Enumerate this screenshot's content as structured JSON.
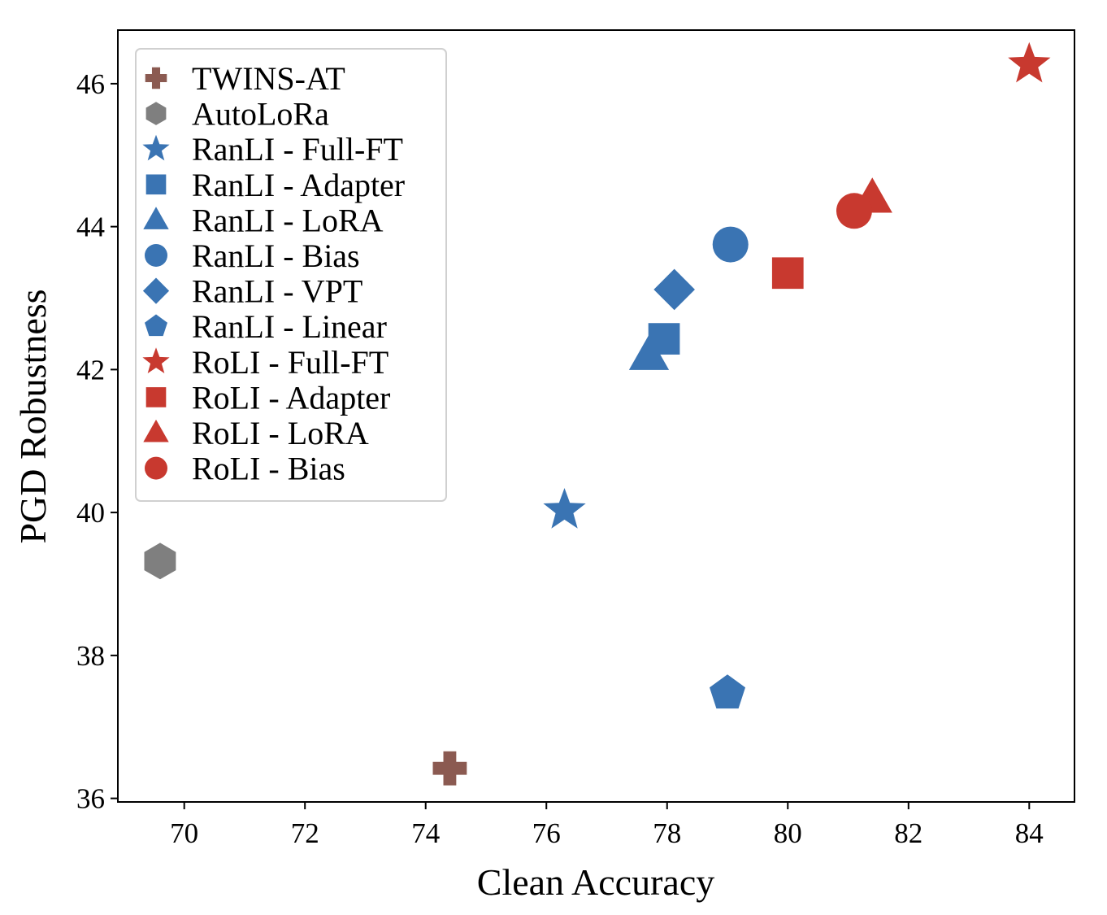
{
  "chart_data": {
    "type": "scatter",
    "title": "",
    "xlabel": "Clean Accuracy",
    "ylabel": "PGD Robustness",
    "xlim": [
      68.9,
      84.75
    ],
    "ylim": [
      35.95,
      46.75
    ],
    "xticks": [
      70,
      72,
      74,
      76,
      78,
      80,
      82,
      84
    ],
    "yticks": [
      36,
      38,
      40,
      42,
      44,
      46
    ],
    "grid": false,
    "legend_position": "top-left",
    "colors": {
      "blue": "#3a74b3",
      "red": "#c8392f",
      "brown": "#8b5a51",
      "gray": "#7f7f7f"
    },
    "series": [
      {
        "name": "TWINS-AT",
        "marker": "plus",
        "color": "#8b5a51",
        "x": 74.4,
        "y": 36.42
      },
      {
        "name": "AutoLoRa",
        "marker": "hexagon",
        "color": "#7f7f7f",
        "x": 69.6,
        "y": 39.32
      },
      {
        "name": "RanLI - Full-FT",
        "marker": "star",
        "color": "#3a74b3",
        "x": 76.3,
        "y": 40.03
      },
      {
        "name": "RanLI - Adapter",
        "marker": "square",
        "color": "#3a74b3",
        "x": 77.95,
        "y": 42.43
      },
      {
        "name": "RanLI - LoRA",
        "marker": "triangle",
        "color": "#3a74b3",
        "x": 77.7,
        "y": 42.2
      },
      {
        "name": "RanLI - Bias",
        "marker": "circle",
        "color": "#3a74b3",
        "x": 79.05,
        "y": 43.75
      },
      {
        "name": "RanLI - VPT",
        "marker": "diamond",
        "color": "#3a74b3",
        "x": 78.12,
        "y": 43.12
      },
      {
        "name": "RanLI - Linear",
        "marker": "pentagon",
        "color": "#3a74b3",
        "x": 79.0,
        "y": 37.47
      },
      {
        "name": "RoLI - Full-FT",
        "marker": "star",
        "color": "#c8392f",
        "x": 84.0,
        "y": 46.27
      },
      {
        "name": "RoLI - Adapter",
        "marker": "square",
        "color": "#c8392f",
        "x": 80.0,
        "y": 43.35
      },
      {
        "name": "RoLI - LoRA",
        "marker": "triangle",
        "color": "#c8392f",
        "x": 81.4,
        "y": 44.4
      },
      {
        "name": "RoLI - Bias",
        "marker": "circle",
        "color": "#c8392f",
        "x": 81.1,
        "y": 44.22
      }
    ]
  }
}
